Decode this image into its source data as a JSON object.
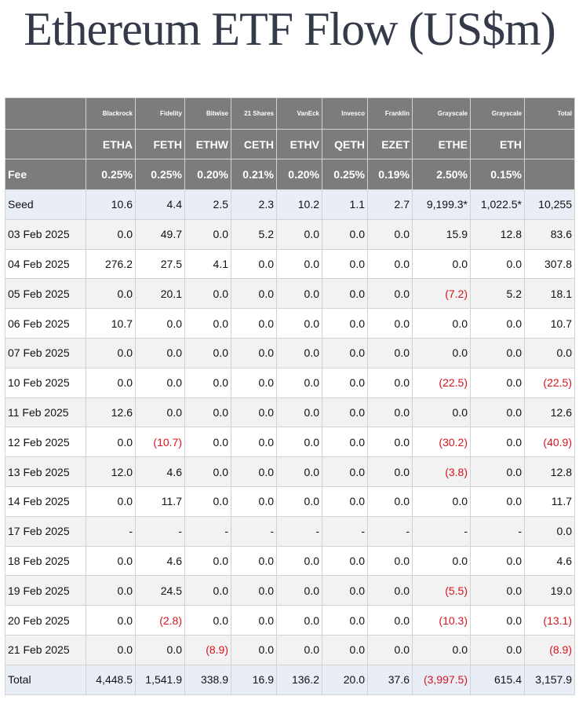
{
  "title": "Ethereum ETF Flow (US$m)",
  "columns": [
    {
      "issuer": "Blackrock",
      "ticker": "ETHA",
      "fee": "0.25%"
    },
    {
      "issuer": "Fidelity",
      "ticker": "FETH",
      "fee": "0.25%"
    },
    {
      "issuer": "Bitwise",
      "ticker": "ETHW",
      "fee": "0.20%"
    },
    {
      "issuer": "21 Shares",
      "ticker": "CETH",
      "fee": "0.21%"
    },
    {
      "issuer": "VanEck",
      "ticker": "ETHV",
      "fee": "0.20%"
    },
    {
      "issuer": "Invesco",
      "ticker": "QETH",
      "fee": "0.25%"
    },
    {
      "issuer": "Franklin",
      "ticker": "EZET",
      "fee": "0.19%"
    },
    {
      "issuer": "Grayscale",
      "ticker": "ETHE",
      "fee": "2.50%"
    },
    {
      "issuer": "Grayscale",
      "ticker": "ETH",
      "fee": "0.15%"
    }
  ],
  "total_header": "Total",
  "fee_label": "Fee",
  "negative_color": "#d8131e",
  "rows": [
    {
      "label": "Seed",
      "values": [
        "10.6",
        "4.4",
        "2.5",
        "2.3",
        "10.2",
        "1.1",
        "2.7",
        "9,199.3*",
        "1,022.5*",
        "10,255"
      ]
    },
    {
      "label": "03 Feb 2025",
      "values": [
        "0.0",
        "49.7",
        "0.0",
        "5.2",
        "0.0",
        "0.0",
        "0.0",
        "15.9",
        "12.8",
        "83.6"
      ]
    },
    {
      "label": "04 Feb 2025",
      "values": [
        "276.2",
        "27.5",
        "4.1",
        "0.0",
        "0.0",
        "0.0",
        "0.0",
        "0.0",
        "0.0",
        "307.8"
      ]
    },
    {
      "label": "05 Feb 2025",
      "values": [
        "0.0",
        "20.1",
        "0.0",
        "0.0",
        "0.0",
        "0.0",
        "0.0",
        "(7.2)",
        "5.2",
        "18.1"
      ]
    },
    {
      "label": "06 Feb 2025",
      "values": [
        "10.7",
        "0.0",
        "0.0",
        "0.0",
        "0.0",
        "0.0",
        "0.0",
        "0.0",
        "0.0",
        "10.7"
      ]
    },
    {
      "label": "07 Feb 2025",
      "values": [
        "0.0",
        "0.0",
        "0.0",
        "0.0",
        "0.0",
        "0.0",
        "0.0",
        "0.0",
        "0.0",
        "0.0"
      ]
    },
    {
      "label": "10 Feb 2025",
      "values": [
        "0.0",
        "0.0",
        "0.0",
        "0.0",
        "0.0",
        "0.0",
        "0.0",
        "(22.5)",
        "0.0",
        "(22.5)"
      ]
    },
    {
      "label": "11 Feb 2025",
      "values": [
        "12.6",
        "0.0",
        "0.0",
        "0.0",
        "0.0",
        "0.0",
        "0.0",
        "0.0",
        "0.0",
        "12.6"
      ]
    },
    {
      "label": "12 Feb 2025",
      "values": [
        "0.0",
        "(10.7)",
        "0.0",
        "0.0",
        "0.0",
        "0.0",
        "0.0",
        "(30.2)",
        "0.0",
        "(40.9)"
      ]
    },
    {
      "label": "13 Feb 2025",
      "values": [
        "12.0",
        "4.6",
        "0.0",
        "0.0",
        "0.0",
        "0.0",
        "0.0",
        "(3.8)",
        "0.0",
        "12.8"
      ]
    },
    {
      "label": "14 Feb 2025",
      "values": [
        "0.0",
        "11.7",
        "0.0",
        "0.0",
        "0.0",
        "0.0",
        "0.0",
        "0.0",
        "0.0",
        "11.7"
      ]
    },
    {
      "label": "17 Feb 2025",
      "values": [
        "-",
        "-",
        "-",
        "-",
        "-",
        "-",
        "-",
        "-",
        "-",
        "0.0"
      ]
    },
    {
      "label": "18 Feb 2025",
      "values": [
        "0.0",
        "4.6",
        "0.0",
        "0.0",
        "0.0",
        "0.0",
        "0.0",
        "0.0",
        "0.0",
        "4.6"
      ]
    },
    {
      "label": "19 Feb 2025",
      "values": [
        "0.0",
        "24.5",
        "0.0",
        "0.0",
        "0.0",
        "0.0",
        "0.0",
        "(5.5)",
        "0.0",
        "19.0"
      ]
    },
    {
      "label": "20 Feb 2025",
      "values": [
        "0.0",
        "(2.8)",
        "0.0",
        "0.0",
        "0.0",
        "0.0",
        "0.0",
        "(10.3)",
        "0.0",
        "(13.1)"
      ]
    },
    {
      "label": "21 Feb 2025",
      "values": [
        "0.0",
        "0.0",
        "(8.9)",
        "0.0",
        "0.0",
        "0.0",
        "0.0",
        "0.0",
        "0.0",
        "(8.9)"
      ]
    },
    {
      "label": "Total",
      "values": [
        "4,448.5",
        "1,541.9",
        "338.9",
        "16.9",
        "136.2",
        "20.0",
        "37.6",
        "(3,997.5)",
        "615.4",
        "3,157.9"
      ]
    }
  ]
}
